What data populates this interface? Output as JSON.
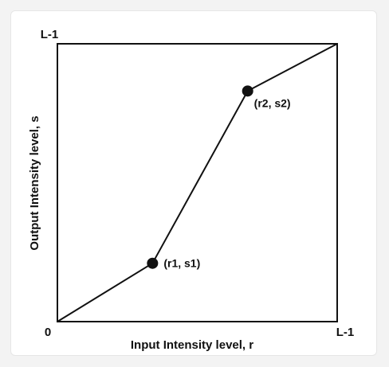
{
  "labels": {
    "y_max": "L-1",
    "origin": "0",
    "x_max": "L-1",
    "x_axis": "Input Intensity level, r",
    "y_axis": "Output Intensity level, s",
    "point1": "(r1, s1)",
    "point2": "(r2, s2)"
  },
  "chart_data": {
    "type": "line",
    "xlabel": "Input Intensity level, r",
    "ylabel": "Output Intensity level, s",
    "x_ticks": [
      "0",
      "L-1"
    ],
    "y_ticks": [
      "0",
      "L-1"
    ],
    "xlim": [
      0,
      1
    ],
    "ylim": [
      0,
      1
    ],
    "points": [
      {
        "x": 0,
        "y": 0
      },
      {
        "x": 0.34,
        "y": 0.21
      },
      {
        "x": 0.68,
        "y": 0.83
      },
      {
        "x": 1,
        "y": 1
      }
    ],
    "annotations": [
      "(r1, s1)",
      "(r2, s2)"
    ]
  },
  "colors": {
    "line": "#111111",
    "frame": "#111111",
    "card": "#ffffff",
    "background": "#f3f3f3"
  }
}
